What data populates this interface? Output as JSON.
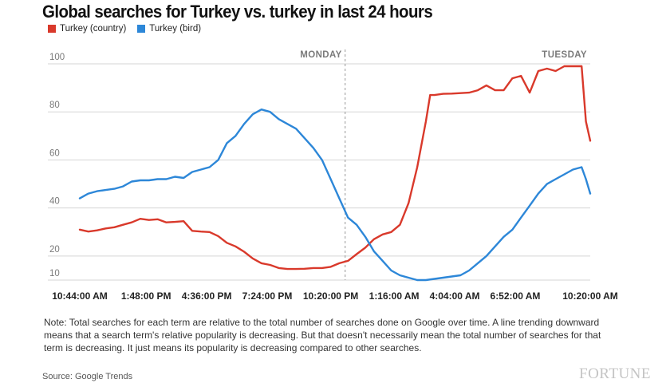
{
  "title": "Global searches for Turkey vs. turkey in last 24 hours",
  "note": "Note: Total searches for each term are relative to the total number of searches done on Google over time. A line trending downward means that a search term's relative popularity is decreasing. But that doesn't necessarily mean the total number of searches for that term is decreasing. It just means its popularity is decreasing compared to other searches.",
  "source": "Source: Google Trends",
  "brand": "FORTUNE",
  "colors": {
    "country": "#d9392b",
    "bird": "#2d87d8",
    "grid": "#d5d5d5",
    "axis_text": "#7a7a7a",
    "divider": "#999999"
  },
  "chart_data": {
    "type": "line",
    "title": "Global searches for Turkey vs. turkey in last 24 hours",
    "ylim": [
      10,
      100
    ],
    "xlim": [
      0,
      23.6
    ],
    "y_ticks": [
      10,
      20,
      40,
      60,
      80,
      100
    ],
    "y_tick_labels": [
      "10",
      "20",
      "40",
      "60",
      "80",
      "100"
    ],
    "x_ticks": [
      0,
      3.067,
      5.867,
      8.667,
      11.6,
      14.533,
      17.333,
      20.133,
      23.6
    ],
    "x_tick_labels": [
      "10:44:00 AM",
      "1:48:00 PM",
      "4:36:00 PM",
      "7:24:00 PM",
      "10:20:00 PM",
      "1:16:00 AM",
      "4:04:00 AM",
      "6:52:00 AM",
      "10:20:00 AM"
    ],
    "day_markers": [
      {
        "label": "MONDAY",
        "x": 12.27
      },
      {
        "label": "TUESDAY",
        "x": 23.6
      }
    ],
    "grid": true,
    "legend_position": "top-left",
    "series": [
      {
        "name": "Turkey (country)",
        "color": "#d9392b",
        "x": [
          0,
          0.4,
          0.8,
          1.2,
          1.6,
          2.0,
          2.4,
          2.8,
          3.2,
          3.6,
          4.0,
          4.4,
          4.8,
          5.2,
          5.6,
          6.0,
          6.4,
          6.8,
          7.2,
          7.6,
          8.0,
          8.4,
          8.8,
          9.2,
          9.6,
          10.0,
          10.4,
          10.8,
          11.2,
          11.6,
          12.0,
          12.4,
          12.8,
          13.2,
          13.6,
          14.0,
          14.4,
          14.8,
          15.2,
          15.6,
          16.0,
          16.2,
          16.4,
          16.8,
          17.2,
          17.6,
          18.0,
          18.4,
          18.8,
          19.2,
          19.6,
          20.0,
          20.4,
          20.8,
          21.2,
          21.6,
          22.0,
          22.4,
          22.8,
          23.2,
          23.4,
          23.6
        ],
        "y": [
          31,
          30.2,
          30.7,
          31.5,
          32,
          33,
          34,
          35.5,
          35,
          35.3,
          34,
          34.2,
          34.5,
          30.5,
          30.2,
          30,
          28.3,
          25.5,
          24,
          21.8,
          19,
          17,
          16.3,
          15,
          14.6,
          14.6,
          14.7,
          15,
          15,
          15.5,
          17,
          18,
          20.8,
          23.5,
          27,
          29,
          30,
          33,
          42,
          57,
          76,
          87,
          87,
          87.5,
          87.6,
          87.8,
          88,
          89,
          91,
          89,
          89,
          94,
          95,
          88,
          97,
          98,
          97,
          99,
          99,
          99,
          76,
          68
        ]
      },
      {
        "name": "Turkey (bird)",
        "color": "#2d87d8",
        "x": [
          0,
          0.4,
          0.8,
          1.2,
          1.6,
          2.0,
          2.4,
          2.8,
          3.2,
          3.6,
          4.0,
          4.4,
          4.8,
          5.2,
          5.6,
          6.0,
          6.4,
          6.8,
          7.2,
          7.6,
          8.0,
          8.4,
          8.8,
          9.2,
          9.6,
          10.0,
          10.4,
          10.8,
          11.2,
          11.6,
          12.0,
          12.4,
          12.8,
          13.2,
          13.6,
          14.0,
          14.4,
          14.8,
          15.2,
          15.6,
          16.0,
          16.4,
          16.8,
          17.2,
          17.6,
          18.0,
          18.4,
          18.8,
          19.2,
          19.6,
          20.0,
          20.4,
          20.8,
          21.2,
          21.6,
          22.0,
          22.4,
          22.8,
          23.2,
          23.4,
          23.6
        ],
        "y": [
          44,
          46,
          47,
          47.5,
          48,
          49,
          51,
          51.5,
          51.5,
          52,
          52,
          53,
          52.5,
          55,
          56,
          57,
          60,
          67,
          70,
          75,
          79,
          81,
          80,
          77,
          75,
          73,
          69,
          65,
          60,
          52,
          44,
          36,
          33,
          28,
          22,
          18,
          14,
          12,
          11,
          10,
          10,
          10.5,
          11,
          11.5,
          12,
          14,
          17,
          20,
          24,
          28,
          31,
          36,
          41,
          46,
          50,
          52,
          54,
          56,
          57,
          52,
          46
        ]
      }
    ]
  }
}
